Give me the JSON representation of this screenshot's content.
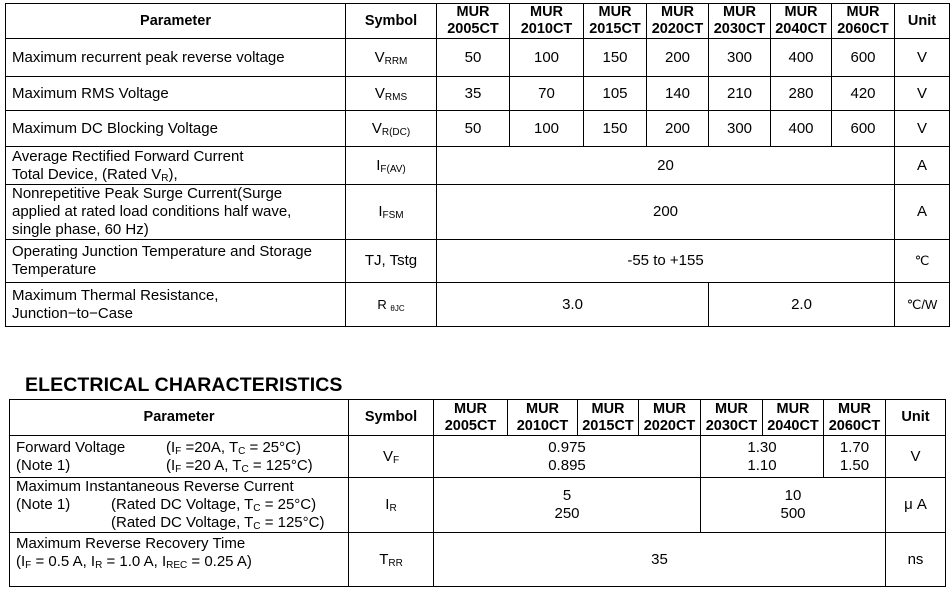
{
  "ratings": {
    "header": {
      "parameter": "Parameter",
      "symbol": "Symbol",
      "unit": "Unit",
      "models": [
        {
          "line1": "MUR",
          "line2": "2005CT"
        },
        {
          "line1": "MUR",
          "line2": "2010CT"
        },
        {
          "line1": "MUR",
          "line2": "2015CT"
        },
        {
          "line1": "MUR",
          "line2": "2020CT"
        },
        {
          "line1": "MUR",
          "line2": "2030CT"
        },
        {
          "line1": "MUR",
          "line2": "2040CT"
        },
        {
          "line1": "MUR",
          "line2": "2060CT"
        }
      ]
    },
    "rows": [
      {
        "param": "Maximum recurrent peak reverse voltage",
        "sym": "V",
        "sub": "RRM",
        "values": [
          "50",
          "100",
          "150",
          "200",
          "300",
          "400",
          "600"
        ],
        "unit": "V"
      },
      {
        "param": "Maximum RMS Voltage",
        "sym": "V",
        "sub": "RMS",
        "values": [
          "35",
          "70",
          "105",
          "140",
          "210",
          "280",
          "420"
        ],
        "unit": "V"
      },
      {
        "param": "Maximum DC Blocking Voltage",
        "sym": "V",
        "sub": "R(DC)",
        "values": [
          "50",
          "100",
          "150",
          "200",
          "300",
          "400",
          "600"
        ],
        "unit": "V"
      },
      {
        "line1": "Average Rectified Forward Current",
        "line2_pre": "Total Device, (Rated V",
        "line2_sub": "R",
        "line2_post": "),",
        "sym": "I",
        "sub": "F(AV)",
        "value": "20",
        "unit": "A"
      },
      {
        "line1": "Nonrepetitive Peak Surge Current(Surge",
        "line2": "applied at rated load conditions half wave,",
        "line3": "single phase, 60 Hz)",
        "sym": "I",
        "sub": "FSM",
        "value": "200",
        "unit": "A"
      },
      {
        "line1": "Operating Junction Temperature and Storage",
        "line2": "Temperature",
        "sym": "TJ, Tstg",
        "value": "-55 to +155",
        "unit": "℃"
      },
      {
        "line1": "Maximum Thermal Resistance,",
        "line2": "Junction−to−Case",
        "sym": "R ",
        "sub": "θJC",
        "values": [
          "3.0",
          "2.0"
        ],
        "unit": "℃/W"
      }
    ]
  },
  "electrical": {
    "title": "ELECTRICAL CHARACTERISTICS",
    "rows": [
      {
        "line1": "Forward Voltage",
        "line2": "(Note 1)",
        "conds": [
          {
            "a": "(I",
            "s1": "F",
            "b": " =20A, T",
            "s2": "C",
            "c": " = 25°C)"
          },
          {
            "a": "(I",
            "s1": "F",
            "b": " =20 A, T",
            "s2": "C",
            "c": " = 125°C)"
          }
        ],
        "sym": "V",
        "sub": "F",
        "groups": [
          [
            "0.975",
            "0.895"
          ],
          [
            "1.30",
            "1.10"
          ],
          [
            "1.70",
            "1.50"
          ]
        ],
        "unit": "V"
      },
      {
        "line1": "Maximum Instantaneous Reverse Current",
        "note": "(Note 1)",
        "conds": [
          {
            "a": "(Rated DC Voltage, T",
            "s2": "C",
            "c": " = 25°C)"
          },
          {
            "a": "(Rated DC Voltage, T",
            "s2": "C",
            "c": " = 125°C)"
          }
        ],
        "sym": "I",
        "sub": "R",
        "groups": [
          [
            "5",
            "250"
          ],
          [
            "10",
            "500"
          ]
        ],
        "unit": "μ A"
      },
      {
        "line1": "Maximum Reverse Recovery Time",
        "line2": {
          "a": "(I",
          "s1": "F",
          "b": " = 0.5 A, I",
          "s2": "R",
          "c": " = 1.0 A, I",
          "s3": "REC",
          "d": " = 0.25 A)"
        },
        "sym": "T",
        "sub": "RR",
        "value": "35",
        "unit": "ns"
      }
    ]
  }
}
